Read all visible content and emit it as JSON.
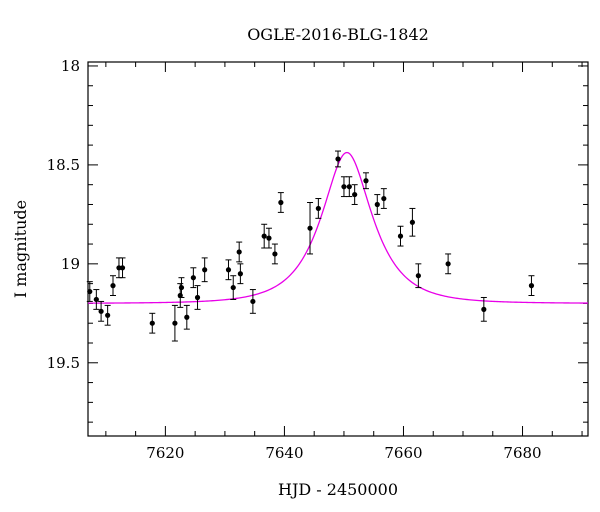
{
  "chart_data": {
    "type": "scatter",
    "title": "OGLE-2016-BLG-1842",
    "xlabel": "HJD - 2450000",
    "ylabel": "I magnitude",
    "xlim": [
      7607,
      7691
    ],
    "ylim": [
      19.87,
      17.98
    ],
    "y_inverted": true,
    "x_ticks": [
      7620,
      7640,
      7660,
      7680
    ],
    "y_ticks": [
      18,
      18.5,
      19,
      19.5
    ],
    "grid": false,
    "legend": "none",
    "colors": {
      "points": "#000000",
      "model": "#e800e8"
    },
    "series": [
      {
        "type": "points_with_errorbars",
        "x": [
          7607.3,
          7608.4,
          7609.2,
          7610.3,
          7611.2,
          7612.2,
          7612.8,
          7617.8,
          7621.6,
          7622.5,
          7622.7,
          7623.6,
          7624.7,
          7625.4,
          7626.6,
          7630.6,
          7631.4,
          7632.4,
          7632.6,
          7634.7,
          7636.6,
          7637.4,
          7638.4,
          7639.4,
          7644.3,
          7645.7,
          7649.0,
          7650.0,
          7650.9,
          7651.8,
          7653.7,
          7655.6,
          7656.7,
          7659.5,
          7661.5,
          7662.5,
          7667.5,
          7673.5,
          7681.5
        ],
        "y": [
          19.14,
          19.18,
          19.24,
          19.26,
          19.11,
          19.02,
          19.02,
          19.3,
          19.3,
          19.16,
          19.12,
          19.27,
          19.07,
          19.17,
          19.03,
          19.03,
          19.12,
          18.94,
          19.05,
          19.19,
          18.86,
          18.87,
          18.95,
          18.69,
          18.82,
          18.72,
          18.47,
          18.61,
          18.61,
          18.65,
          18.58,
          18.7,
          18.67,
          18.86,
          18.79,
          19.06,
          19.0,
          19.23,
          19.11
        ],
        "err": [
          0.05,
          0.05,
          0.05,
          0.05,
          0.05,
          0.05,
          0.05,
          0.05,
          0.09,
          0.06,
          0.05,
          0.06,
          0.05,
          0.06,
          0.06,
          0.05,
          0.06,
          0.05,
          0.05,
          0.06,
          0.06,
          0.05,
          0.05,
          0.05,
          0.13,
          0.05,
          0.04,
          0.05,
          0.05,
          0.05,
          0.04,
          0.05,
          0.05,
          0.05,
          0.07,
          0.06,
          0.05,
          0.06,
          0.05
        ]
      },
      {
        "type": "model_curve",
        "t0": 7650.5,
        "u0": 0.55,
        "tE": 7.0,
        "baseline": 19.2
      }
    ]
  }
}
